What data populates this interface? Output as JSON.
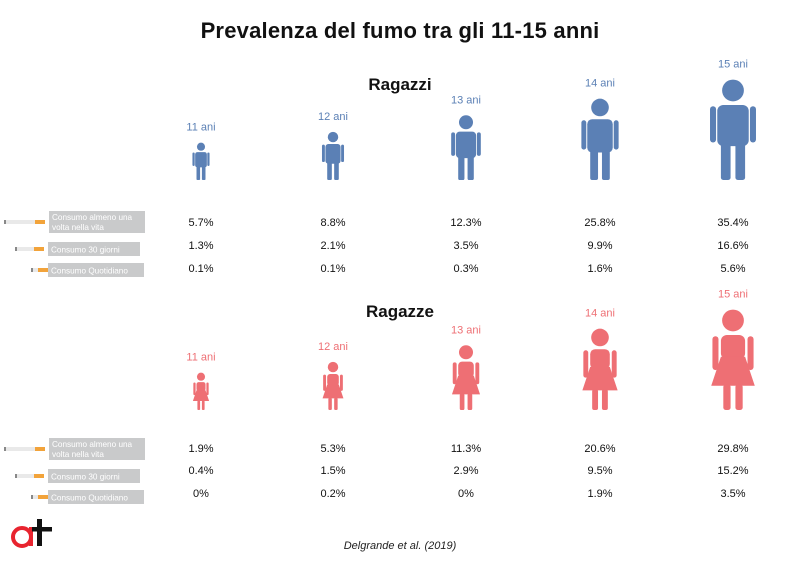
{
  "title": "Prevalenza del fumo tra gli 11-15 anni",
  "source": "Delgrande et al. (2019)",
  "logo_text": "at",
  "colors": {
    "boys": "#5b80b5",
    "girls": "#ee6f74",
    "label_bg": "#c9cacb",
    "cigarette_filter": "#f2a33a",
    "cigarette_paper": "#e9e9e9"
  },
  "chart_data": [
    {
      "type": "table",
      "title": "Ragazzi",
      "categories": [
        "11 ani",
        "12 ani",
        "13 ani",
        "14 ani",
        "15 ani"
      ],
      "series": [
        {
          "name": "Consumo almeno una volta nella vita",
          "values": [
            5.7,
            8.8,
            12.3,
            25.8,
            35.4
          ],
          "labels": [
            "5.7%",
            "8.8%",
            "12.3%",
            "25.8%",
            "35.4%"
          ]
        },
        {
          "name": "Consumo 30 giorni",
          "values": [
            1.3,
            2.1,
            3.5,
            9.9,
            16.6
          ],
          "labels": [
            "1.3%",
            "2.1%",
            "3.5%",
            "9.9%",
            "16.6%"
          ]
        },
        {
          "name": "Consumo Quotidiano",
          "values": [
            0.1,
            0.1,
            0.3,
            1.6,
            5.6
          ],
          "labels": [
            "0.1%",
            "0.1%",
            "0.3%",
            "1.6%",
            "5.6%"
          ]
        }
      ]
    },
    {
      "type": "table",
      "title": "Ragazze",
      "categories": [
        "11 ani",
        "12 ani",
        "13 ani",
        "14 ani",
        "15 ani"
      ],
      "series": [
        {
          "name": "Consumo almeno una volta nella vita",
          "values": [
            1.9,
            5.3,
            11.3,
            20.6,
            29.8
          ],
          "labels": [
            "1.9%",
            "5.3%",
            "11.3%",
            "20.6%",
            "29.8%"
          ]
        },
        {
          "name": "Consumo 30 giorni",
          "values": [
            0.4,
            1.5,
            2.9,
            9.5,
            15.2
          ],
          "labels": [
            "0.4%",
            "1.5%",
            "2.9%",
            "9.5%",
            "15.2%"
          ]
        },
        {
          "name": "Consumo Quotidiano",
          "values": [
            0,
            0.2,
            0,
            1.9,
            3.5
          ],
          "labels": [
            "0%",
            "0.2%",
            "0%",
            "1.9%",
            "3.5%"
          ]
        }
      ]
    }
  ]
}
